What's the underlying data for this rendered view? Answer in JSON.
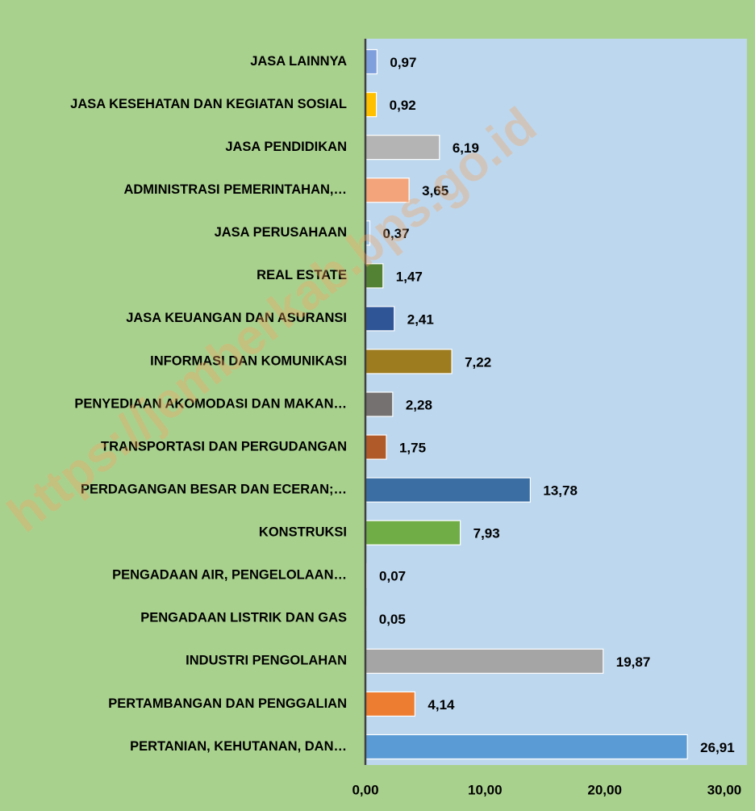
{
  "chart_data": {
    "type": "hbar",
    "categories": [
      "JASA LAINNYA",
      "JASA KESEHATAN DAN KEGIATAN SOSIAL",
      "JASA PENDIDIKAN",
      "ADMINISTRASI PEMERINTAHAN,…",
      "JASA PERUSAHAAN",
      "REAL ESTATE",
      "JASA KEUANGAN DAN ASURANSI",
      "INFORMASI DAN KOMUNIKASI",
      "PENYEDIAAN AKOMODASI DAN MAKAN…",
      "TRANSPORTASI DAN PERGUDANGAN",
      "PERDAGANGAN BESAR DAN ECERAN;…",
      "KONSTRUKSI",
      "PENGADAAN AIR, PENGELOLAAN…",
      "PENGADAAN LISTRIK DAN GAS",
      "INDUSTRI PENGOLAHAN",
      "PERTAMBANGAN DAN PENGGALIAN",
      "PERTANIAN, KEHUTANAN, DAN…"
    ],
    "values": [
      0.97,
      0.92,
      6.19,
      3.65,
      0.37,
      1.47,
      2.41,
      7.22,
      2.28,
      1.75,
      13.78,
      7.93,
      0.07,
      0.05,
      19.87,
      4.14,
      26.91
    ],
    "value_labels": [
      "0,97",
      "0,92",
      "6,19",
      "3,65",
      "0,37",
      "1,47",
      "2,41",
      "7,22",
      "2,28",
      "1,75",
      "13,78",
      "7,93",
      "0,07",
      "0,05",
      "19,87",
      "4,14",
      "26,91"
    ],
    "colors": [
      "#7f9fdc",
      "#ffc000",
      "#b4b4b4",
      "#f4a47a",
      "#9dc3e6",
      "#548235",
      "#2f5597",
      "#9c7c1f",
      "#757171",
      "#b05a2a",
      "#3b6fa3",
      "#70ad47",
      "#ffc000",
      "#4472c4",
      "#a5a5a5",
      "#ed7d31",
      "#5b9bd5"
    ],
    "xlim": [
      0,
      30
    ],
    "xticks": [
      {
        "value": 0,
        "label": "0,00"
      },
      {
        "value": 10,
        "label": "10,00"
      },
      {
        "value": 20,
        "label": "20,00"
      },
      {
        "value": 30,
        "label": "30,00"
      }
    ],
    "watermark": "https://jemberkab.bps.go.id"
  }
}
